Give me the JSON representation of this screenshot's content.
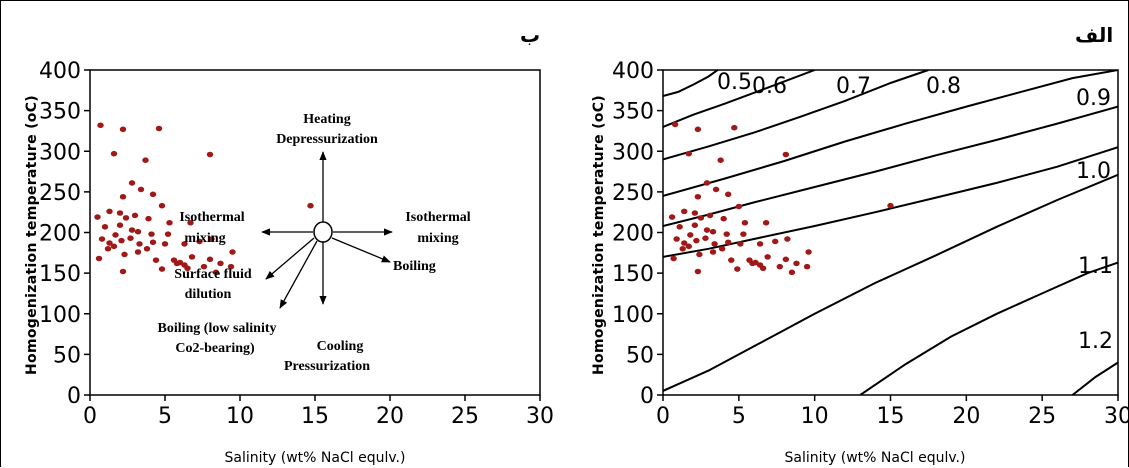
{
  "chart_data": [
    {
      "panel_label": "ب",
      "type": "scatter",
      "ylabel": "Homogenization temperature (oC)",
      "xlabel": "Salinity (wt% NaCl equlv.)",
      "xlim": [
        0,
        30
      ],
      "ylim": [
        0,
        400
      ],
      "xticks": [
        "0",
        "5",
        "10",
        "15",
        "20",
        "25",
        "30"
      ],
      "yticks": [
        "0",
        "50",
        "100",
        "150",
        "200",
        "250",
        "300",
        "350",
        "400"
      ],
      "points": [
        [
          0.7,
          332
        ],
        [
          2.2,
          327
        ],
        [
          4.6,
          328
        ],
        [
          1.6,
          297
        ],
        [
          8.0,
          296
        ],
        [
          3.7,
          289
        ],
        [
          2.8,
          261
        ],
        [
          3.4,
          253
        ],
        [
          2.2,
          244
        ],
        [
          4.2,
          247
        ],
        [
          0.5,
          219
        ],
        [
          1.3,
          226
        ],
        [
          2.0,
          224
        ],
        [
          2.4,
          218
        ],
        [
          3.0,
          221
        ],
        [
          3.9,
          217
        ],
        [
          4.8,
          233
        ],
        [
          5.3,
          212
        ],
        [
          1.0,
          207
        ],
        [
          2.0,
          209
        ],
        [
          2.8,
          203
        ],
        [
          3.2,
          201
        ],
        [
          4.1,
          198
        ],
        [
          5.2,
          198
        ],
        [
          6.7,
          212
        ],
        [
          0.8,
          192
        ],
        [
          1.3,
          187
        ],
        [
          1.7,
          197
        ],
        [
          2.1,
          190
        ],
        [
          2.7,
          193
        ],
        [
          3.3,
          186
        ],
        [
          4.2,
          188
        ],
        [
          5.0,
          186
        ],
        [
          6.3,
          186
        ],
        [
          7.3,
          189
        ],
        [
          8.1,
          192
        ],
        [
          0.6,
          168
        ],
        [
          1.2,
          180
        ],
        [
          1.6,
          183
        ],
        [
          2.3,
          173
        ],
        [
          3.2,
          176
        ],
        [
          3.8,
          180
        ],
        [
          4.4,
          166
        ],
        [
          5.6,
          166
        ],
        [
          6.0,
          163
        ],
        [
          6.3,
          160
        ],
        [
          6.8,
          170
        ],
        [
          7.6,
          158
        ],
        [
          8.0,
          167
        ],
        [
          8.7,
          162
        ],
        [
          9.5,
          176
        ],
        [
          9.4,
          158
        ],
        [
          2.2,
          152
        ],
        [
          4.8,
          155
        ],
        [
          5.8,
          162
        ],
        [
          6.5,
          156
        ],
        [
          8.4,
          151
        ],
        [
          14.7,
          233
        ]
      ],
      "arrow_labels": [
        {
          "lines": [
            "Heating",
            "Depressurization"
          ]
        },
        {
          "lines": [
            "Isothermal",
            "mixing"
          ],
          "side": "left"
        },
        {
          "lines": [
            "Isothermal",
            "mixing"
          ],
          "side": "right"
        },
        {
          "lines": [
            "Surface fluid",
            "dilution"
          ]
        },
        {
          "lines": [
            "Boiling"
          ]
        },
        {
          "lines": [
            "Boiling (low salinity",
            "Co2-bearing)"
          ]
        },
        {
          "lines": [
            "Cooling",
            "Pressurization"
          ]
        }
      ]
    },
    {
      "panel_label": "الف",
      "type": "scatter",
      "ylabel": "Homogenization temperature (oC)",
      "xlabel": "Salinity (wt% NaCl equlv.)",
      "xlim": [
        0,
        30
      ],
      "ylim": [
        0,
        400
      ],
      "xticks": [
        "0",
        "5",
        "10",
        "15",
        "20",
        "25",
        "30"
      ],
      "yticks": [
        "0",
        "50",
        "100",
        "150",
        "200",
        "250",
        "300",
        "350",
        "400"
      ],
      "points": [
        [
          0.8,
          333
        ],
        [
          2.3,
          327
        ],
        [
          4.7,
          329
        ],
        [
          1.7,
          297
        ],
        [
          8.1,
          296
        ],
        [
          3.8,
          289
        ],
        [
          2.9,
          261
        ],
        [
          3.5,
          253
        ],
        [
          2.3,
          244
        ],
        [
          4.3,
          247
        ],
        [
          0.6,
          219
        ],
        [
          1.4,
          226
        ],
        [
          2.1,
          224
        ],
        [
          2.5,
          218
        ],
        [
          3.1,
          221
        ],
        [
          4.0,
          217
        ],
        [
          5.0,
          232
        ],
        [
          5.4,
          212
        ],
        [
          1.1,
          207
        ],
        [
          2.1,
          209
        ],
        [
          2.9,
          203
        ],
        [
          3.3,
          201
        ],
        [
          4.2,
          198
        ],
        [
          5.3,
          198
        ],
        [
          6.8,
          212
        ],
        [
          0.9,
          192
        ],
        [
          1.4,
          187
        ],
        [
          1.8,
          197
        ],
        [
          2.2,
          190
        ],
        [
          2.8,
          193
        ],
        [
          3.4,
          186
        ],
        [
          4.3,
          188
        ],
        [
          5.1,
          186
        ],
        [
          6.4,
          186
        ],
        [
          7.4,
          189
        ],
        [
          8.2,
          192
        ],
        [
          0.7,
          168
        ],
        [
          1.3,
          180
        ],
        [
          1.7,
          183
        ],
        [
          2.4,
          173
        ],
        [
          3.3,
          176
        ],
        [
          3.9,
          180
        ],
        [
          4.5,
          166
        ],
        [
          5.7,
          166
        ],
        [
          6.1,
          163
        ],
        [
          6.4,
          160
        ],
        [
          6.9,
          170
        ],
        [
          7.7,
          158
        ],
        [
          8.1,
          167
        ],
        [
          8.8,
          162
        ],
        [
          9.6,
          176
        ],
        [
          9.5,
          158
        ],
        [
          2.3,
          152
        ],
        [
          4.9,
          155
        ],
        [
          5.9,
          162
        ],
        [
          6.6,
          156
        ],
        [
          8.5,
          151
        ],
        [
          15.0,
          233
        ]
      ],
      "density_isolines": [
        {
          "label": "0.5",
          "points": [
            [
              0,
              368
            ],
            [
              1,
              373
            ],
            [
              2,
              382
            ],
            [
              3,
              392
            ],
            [
              3.6,
              400
            ]
          ]
        },
        {
          "label": "0.6",
          "points": [
            [
              0,
              330
            ],
            [
              2,
              345
            ],
            [
              4,
              358
            ],
            [
              6,
              372
            ],
            [
              8,
              386
            ],
            [
              10,
              400
            ]
          ]
        },
        {
          "label": "0.7",
          "points": [
            [
              0,
              290
            ],
            [
              3,
              306
            ],
            [
              6,
              323
            ],
            [
              9,
              342
            ],
            [
              12,
              362
            ],
            [
              15,
              384
            ],
            [
              17.5,
              400
            ]
          ]
        },
        {
          "label": "0.8",
          "points": [
            [
              0,
              245
            ],
            [
              4,
              266
            ],
            [
              8,
              288
            ],
            [
              12,
              312
            ],
            [
              16,
              334
            ],
            [
              20,
              355
            ],
            [
              24,
              375
            ],
            [
              27,
              390
            ],
            [
              30,
              400
            ]
          ]
        },
        {
          "label": "0.9",
          "points": [
            [
              0,
              208
            ],
            [
              3,
              222
            ],
            [
              6,
              237
            ],
            [
              10,
              256
            ],
            [
              14,
              275
            ],
            [
              18,
              295
            ],
            [
              22,
              314
            ],
            [
              26,
              334
            ],
            [
              30,
              355
            ]
          ]
        },
        {
          "label": "1.0",
          "points": [
            [
              0,
              170
            ],
            [
              3,
              180
            ],
            [
              6,
              192
            ],
            [
              10,
              208
            ],
            [
              14,
              225
            ],
            [
              18,
              243
            ],
            [
              22,
              261
            ],
            [
              26,
              281
            ],
            [
              30,
              305
            ]
          ]
        },
        {
          "label": "1.1",
          "points": [
            [
              0,
              5
            ],
            [
              3,
              30
            ],
            [
              6,
              60
            ],
            [
              10,
              100
            ],
            [
              14,
              138
            ],
            [
              18,
              172
            ],
            [
              22,
              207
            ],
            [
              26,
              240
            ],
            [
              30,
              271
            ]
          ]
        },
        {
          "label": "1.2",
          "points": [
            [
              13,
              0
            ],
            [
              16,
              38
            ],
            [
              19,
              72
            ],
            [
              22,
              100
            ],
            [
              25,
              125
            ],
            [
              28,
              150
            ],
            [
              30,
              163
            ]
          ]
        },
        {
          "label": "",
          "points": [
            [
              27,
              0
            ],
            [
              28.5,
              22
            ],
            [
              30,
              40
            ]
          ]
        }
      ]
    }
  ],
  "colors": {
    "point": "#a01818",
    "line": "#000000"
  }
}
